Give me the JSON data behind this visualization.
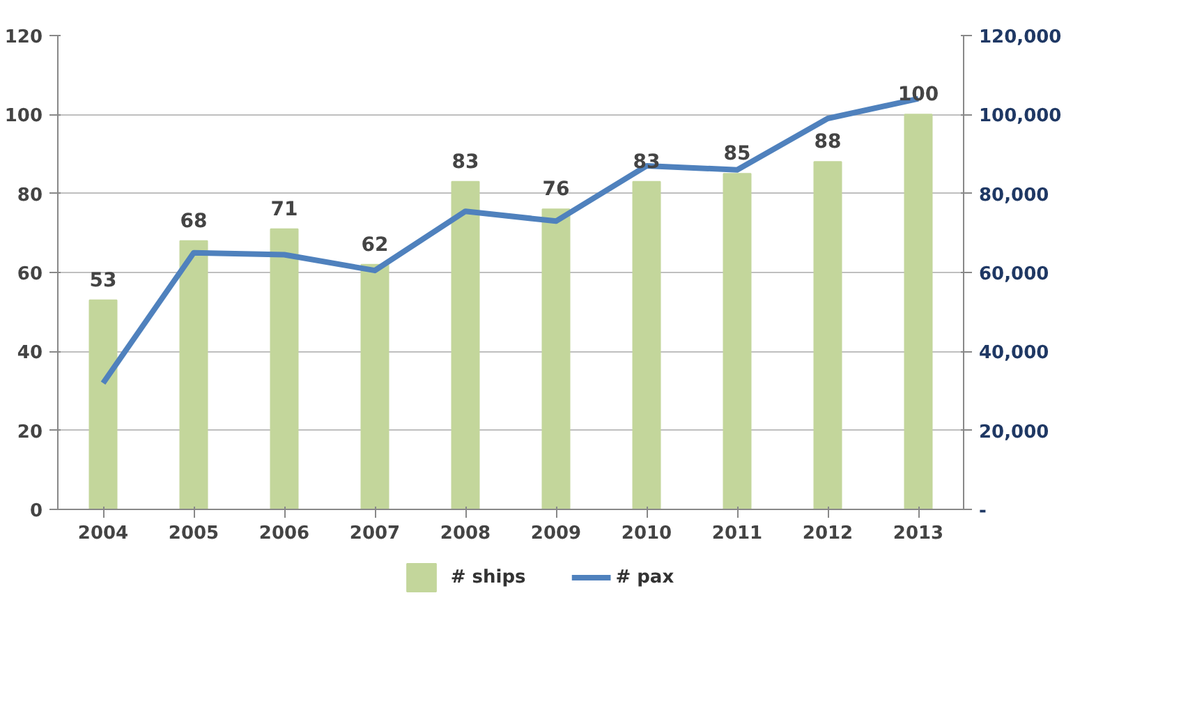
{
  "chart_data": {
    "type": "bar",
    "categories": [
      "2004",
      "2005",
      "2006",
      "2007",
      "2008",
      "2009",
      "2010",
      "2011",
      "2012",
      "2013"
    ],
    "series": [
      {
        "name": "# ships",
        "color": "#c3d69b",
        "values": [
          53,
          68,
          71,
          62,
          83,
          76,
          83,
          85,
          88,
          100
        ],
        "value_labels": [
          "53",
          "68",
          "71",
          "62",
          "83",
          "76",
          "83",
          "85",
          "88",
          "100"
        ]
      },
      {
        "name": "# pax",
        "type": "line",
        "axis": "y2",
        "color": "#4f81bd",
        "values": [
          32000,
          65000,
          64500,
          60500,
          75500,
          73000,
          87000,
          86000,
          99000,
          104000
        ]
      }
    ],
    "ylim": [
      0,
      120
    ],
    "yticks": [
      0,
      20,
      40,
      60,
      80,
      100,
      120
    ],
    "y2lim": [
      0,
      120000
    ],
    "y2ticks": [
      {
        "value": 0,
        "label": "-"
      },
      {
        "value": 20000,
        "label": "20,000"
      },
      {
        "value": 40000,
        "label": "40,000"
      },
      {
        "value": 60000,
        "label": "60,000"
      },
      {
        "value": 80000,
        "label": "80,000"
      },
      {
        "value": 100000,
        "label": "100,000"
      },
      {
        "value": 120000,
        "label": "120,000"
      }
    ],
    "grid": "y",
    "legend": "bottom",
    "marker": "none",
    "line_style": "solid"
  }
}
